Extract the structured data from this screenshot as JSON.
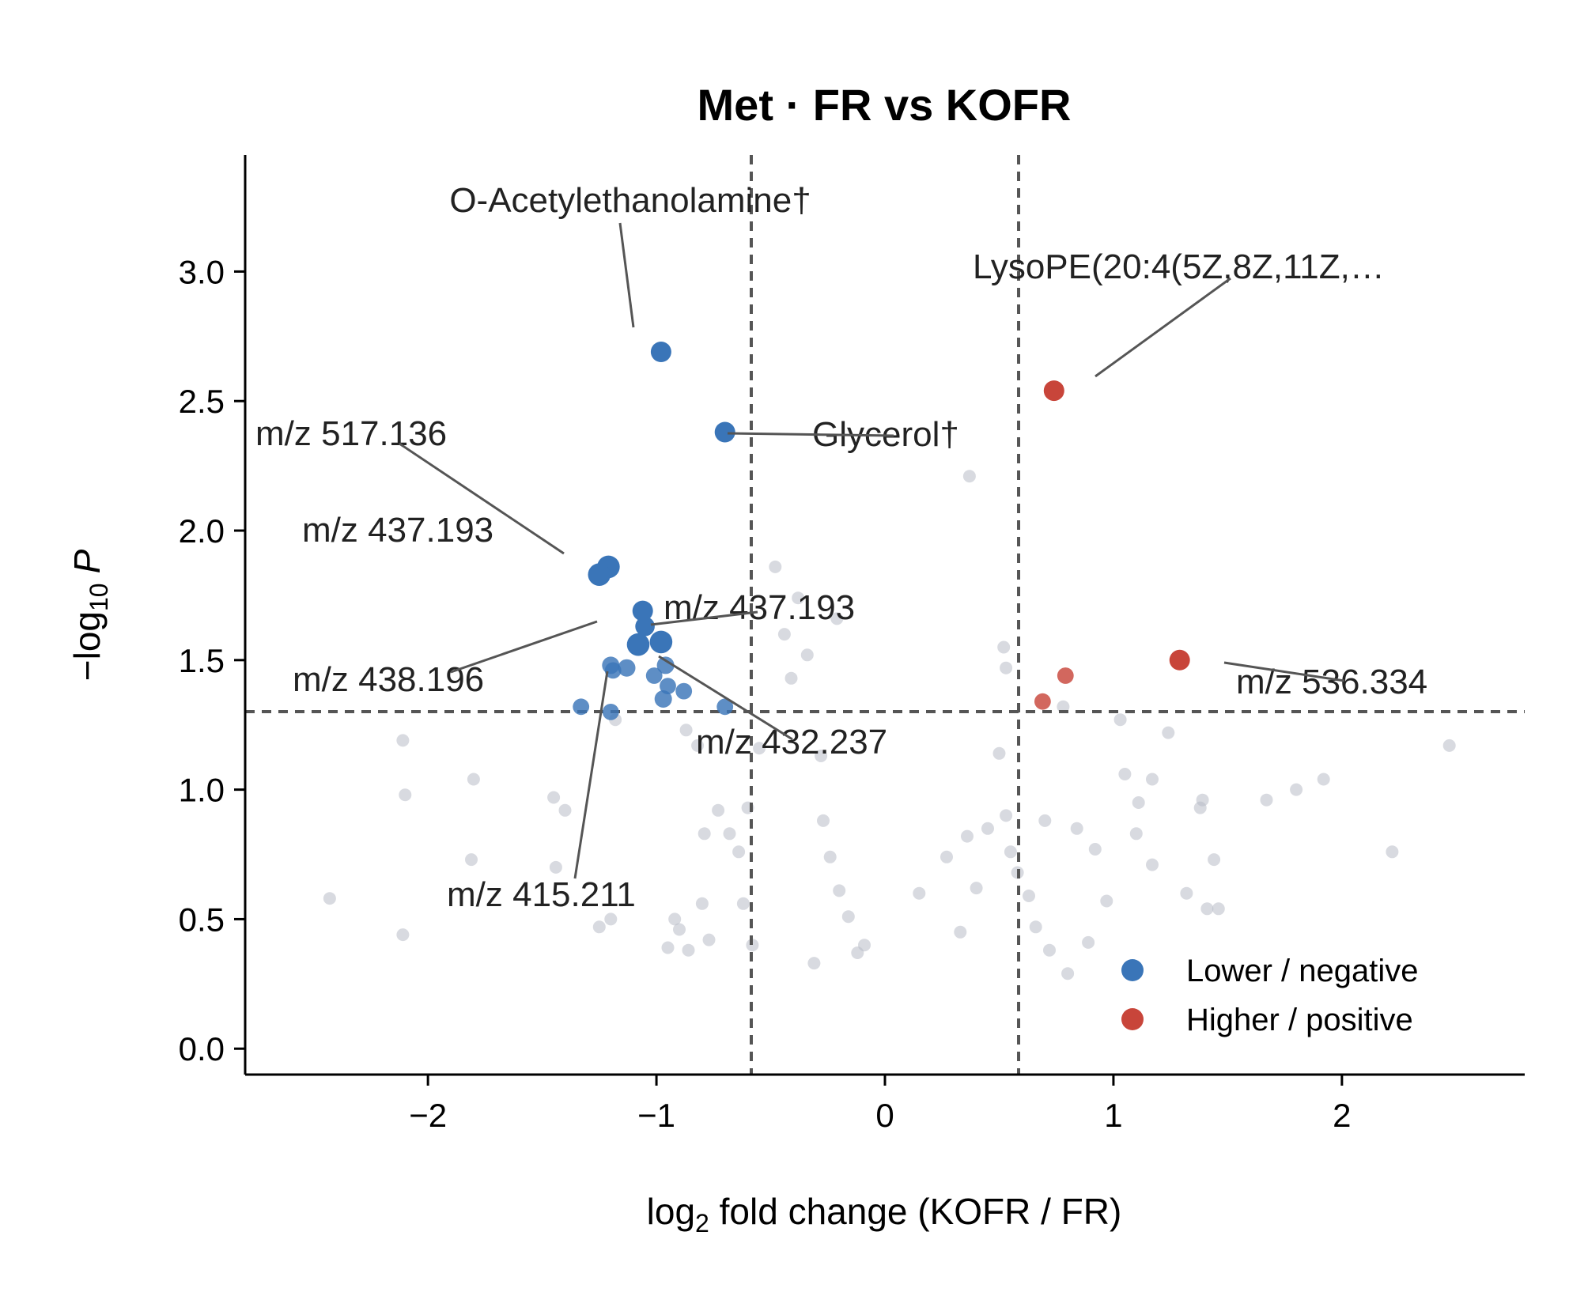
{
  "chart_data": {
    "type": "scatter",
    "title": "Met · FR vs KOFR",
    "xlabel_prefix": "log",
    "xlabel_sub": "2",
    "xlabel_rest": " fold change (KOFR / FR)",
    "ylabel_prefix": "−log",
    "ylabel_sub": "10",
    "ylabel_p": "P",
    "xlim": [
      -2.8,
      2.8
    ],
    "ylim": [
      -0.1,
      3.45
    ],
    "x_ticks": [
      -2,
      -1,
      0,
      1,
      2
    ],
    "x_tick_labels": [
      "−2",
      "−1",
      "0",
      "1",
      "2"
    ],
    "y_ticks": [
      0.0,
      0.5,
      1.0,
      1.5,
      2.0,
      2.5,
      3.0
    ],
    "y_tick_labels": [
      "0.0",
      "0.5",
      "1.0",
      "1.5",
      "2.0",
      "2.5",
      "3.0"
    ],
    "thresholds": {
      "fc": [
        -0.585,
        0.585
      ],
      "p": 1.301
    },
    "grid": false,
    "legend_position": "bottom-right",
    "colors": {
      "lower": "#3a75b8",
      "higher": "#c8453a",
      "ns": "#b8bcc6",
      "threshold": "#555555",
      "leader": "#555555"
    },
    "series": [
      {
        "name": "Lower / negative",
        "color": "#3a75b8",
        "in_legend": true,
        "points": [
          [
            -0.98,
            2.69,
            1.0
          ],
          [
            -0.7,
            2.38,
            1.0
          ],
          [
            -1.21,
            1.86,
            1.1
          ],
          [
            -1.25,
            1.83,
            1.1
          ],
          [
            -1.06,
            1.69,
            1.0
          ],
          [
            -1.05,
            1.63,
            0.95
          ],
          [
            -1.08,
            1.56,
            1.1
          ],
          [
            -0.98,
            1.57,
            1.1
          ],
          [
            -1.2,
            1.48,
            0.85
          ],
          [
            -1.13,
            1.47,
            0.85
          ],
          [
            -0.96,
            1.48,
            0.85
          ],
          [
            -1.19,
            1.46,
            0.8
          ],
          [
            -1.01,
            1.44,
            0.8
          ],
          [
            -0.95,
            1.4,
            0.8
          ],
          [
            -0.88,
            1.38,
            0.8
          ],
          [
            -0.97,
            1.35,
            0.85
          ],
          [
            -1.33,
            1.32,
            0.8
          ],
          [
            -1.2,
            1.3,
            0.8
          ],
          [
            -0.7,
            1.32,
            0.8
          ]
        ]
      },
      {
        "name": "Higher / positive",
        "color": "#c8453a",
        "in_legend": true,
        "points": [
          [
            0.74,
            2.54,
            1.0
          ],
          [
            1.29,
            1.5,
            1.0
          ],
          [
            0.79,
            1.44,
            0.8
          ],
          [
            0.69,
            1.34,
            0.8
          ]
        ]
      },
      {
        "name": "",
        "color": "#b8bcc6",
        "in_legend": false,
        "points": [
          [
            0.37,
            2.21
          ],
          [
            -0.48,
            1.86
          ],
          [
            -0.38,
            1.74
          ],
          [
            -0.21,
            1.66
          ],
          [
            0.52,
            1.55
          ],
          [
            -0.44,
            1.6
          ],
          [
            -0.34,
            1.52
          ],
          [
            -0.41,
            1.43
          ],
          [
            0.78,
            1.32
          ],
          [
            0.53,
            1.47
          ],
          [
            1.03,
            1.27
          ],
          [
            1.24,
            1.22
          ],
          [
            2.47,
            1.17
          ],
          [
            -2.11,
            1.19
          ],
          [
            -1.18,
            1.27
          ],
          [
            -0.87,
            1.23
          ],
          [
            -0.82,
            1.17
          ],
          [
            -0.55,
            1.16
          ],
          [
            -0.28,
            1.13
          ],
          [
            0.5,
            1.14
          ],
          [
            -1.8,
            1.04
          ],
          [
            -1.45,
            0.97
          ],
          [
            -1.4,
            0.92
          ],
          [
            -1.81,
            0.73
          ],
          [
            -1.44,
            0.7
          ],
          [
            -2.43,
            0.58
          ],
          [
            -2.11,
            0.44
          ],
          [
            -1.25,
            0.47
          ],
          [
            -1.2,
            0.5
          ],
          [
            -0.92,
            0.5
          ],
          [
            -0.9,
            0.46
          ],
          [
            -0.95,
            0.39
          ],
          [
            1.05,
            1.06
          ],
          [
            1.17,
            1.04
          ],
          [
            1.11,
            0.95
          ],
          [
            1.38,
            0.93
          ],
          [
            1.67,
            0.96
          ],
          [
            1.8,
            1.0
          ],
          [
            1.92,
            1.04
          ],
          [
            2.22,
            0.76
          ],
          [
            1.44,
            0.73
          ],
          [
            1.39,
            0.96
          ],
          [
            1.32,
            0.6
          ],
          [
            1.41,
            0.54
          ],
          [
            1.46,
            0.54
          ],
          [
            1.1,
            0.83
          ],
          [
            1.17,
            0.71
          ],
          [
            -2.1,
            0.98
          ],
          [
            -0.6,
            0.93
          ],
          [
            -0.73,
            0.92
          ],
          [
            -0.68,
            0.83
          ],
          [
            -0.79,
            0.83
          ],
          [
            -0.64,
            0.76
          ],
          [
            -0.62,
            0.56
          ],
          [
            -0.8,
            0.56
          ],
          [
            -0.77,
            0.42
          ],
          [
            -0.86,
            0.38
          ],
          [
            -0.58,
            0.4
          ],
          [
            -0.27,
            0.88
          ],
          [
            -0.24,
            0.74
          ],
          [
            -0.2,
            0.61
          ],
          [
            -0.16,
            0.51
          ],
          [
            -0.12,
            0.37
          ],
          [
            0.15,
            0.6
          ],
          [
            0.27,
            0.74
          ],
          [
            0.36,
            0.82
          ],
          [
            0.45,
            0.85
          ],
          [
            0.53,
            0.9
          ],
          [
            0.55,
            0.76
          ],
          [
            0.4,
            0.62
          ],
          [
            0.33,
            0.45
          ],
          [
            0.58,
            0.68
          ],
          [
            0.63,
            0.59
          ],
          [
            0.66,
            0.47
          ],
          [
            0.72,
            0.38
          ],
          [
            0.7,
            0.88
          ],
          [
            0.84,
            0.85
          ],
          [
            0.92,
            0.77
          ],
          [
            0.97,
            0.57
          ],
          [
            0.89,
            0.41
          ],
          [
            0.8,
            0.29
          ],
          [
            -0.09,
            0.4
          ],
          [
            -0.31,
            0.33
          ]
        ]
      }
    ],
    "annotations": [
      {
        "label": "O-Acetylethanolamine†",
        "point": [
          -0.98,
          2.69
        ]
      },
      {
        "label": "LysoPE(20:4(5Z,8Z,11Z,…",
        "point": [
          0.74,
          2.54
        ]
      },
      {
        "label": "Glycerol†",
        "point": [
          -0.7,
          2.38
        ]
      },
      {
        "label": "m/z 517.136",
        "point": [
          -1.21,
          1.86
        ]
      },
      {
        "label": "m/z 437.193",
        "point": [
          -1.25,
          1.83
        ]
      },
      {
        "label": "m/z 437.193",
        "point": [
          -1.06,
          1.69
        ]
      },
      {
        "label": "m/z 438.196",
        "point": [
          -1.08,
          1.56
        ]
      },
      {
        "label": "m/z 536.334",
        "point": [
          1.29,
          1.5
        ]
      },
      {
        "label": "m/z 432.237",
        "point": [
          -0.98,
          1.57
        ]
      },
      {
        "label": "m/z 415.211",
        "point": [
          -1.2,
          1.48
        ]
      }
    ]
  }
}
